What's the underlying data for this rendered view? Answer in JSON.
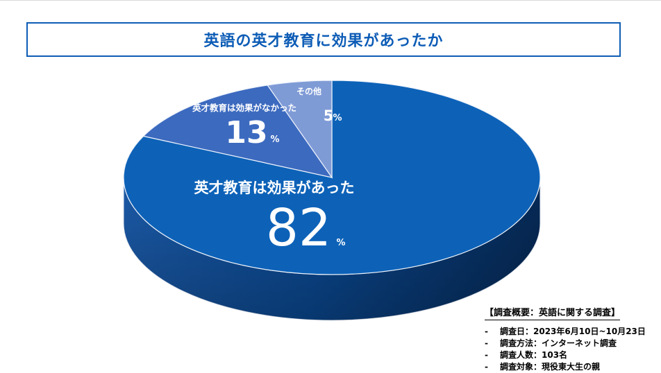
{
  "title": "英語の英才教育に効果があったか",
  "chart_data": {
    "type": "pie",
    "style": "3d",
    "slices": [
      {
        "label": "英才教育は効果があった",
        "value": 82,
        "unit": "%",
        "color": "#0d62b8"
      },
      {
        "label": "英才教育は効果がなかった",
        "value": 13,
        "unit": "%",
        "color": "#3c6abf"
      },
      {
        "label": "その他",
        "value": 5,
        "unit": "%",
        "color": "#7f9bd6"
      }
    ]
  },
  "notes": {
    "heading": "【調査概要：英語に関する調査】",
    "items": [
      {
        "bullet": "-",
        "text": "調査日：2023年6月10日~10月23日"
      },
      {
        "bullet": "-",
        "text": "調査方法：インターネット調査"
      },
      {
        "bullet": "-",
        "text": "調査人数：103名"
      },
      {
        "bullet": "-",
        "text": "調査対象：現役東大生の親"
      }
    ]
  }
}
